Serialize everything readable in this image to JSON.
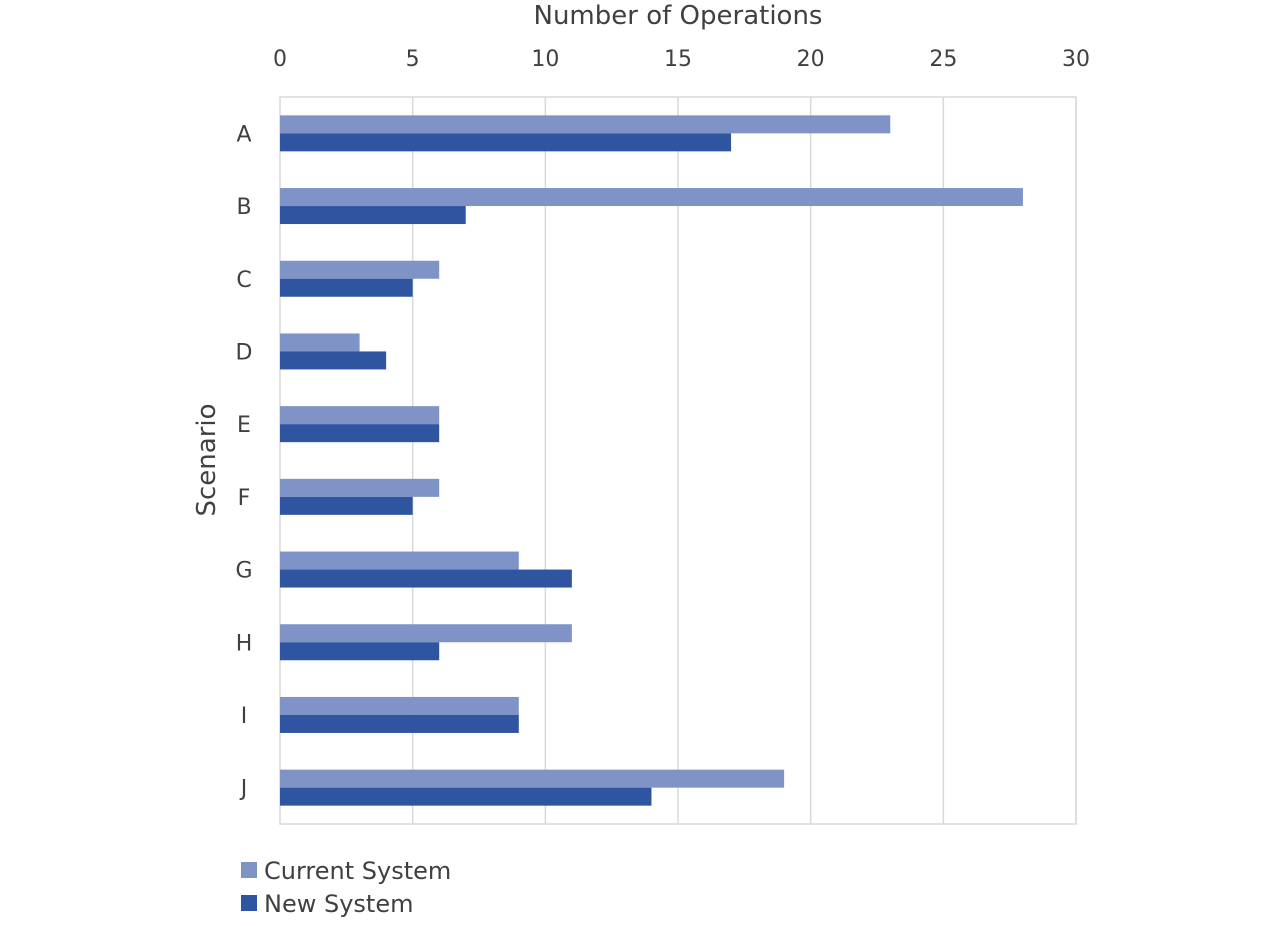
{
  "chart_data": {
    "type": "bar",
    "orientation": "horizontal",
    "title": "",
    "xlabel": "Number of Operations",
    "ylabel": "Scenario",
    "xlim": [
      0,
      30
    ],
    "xticks": [
      0,
      5,
      10,
      15,
      20,
      25,
      30
    ],
    "x_axis_position": "top",
    "grid": true,
    "legend_position": "bottom-left",
    "categories": [
      "A",
      "B",
      "C",
      "D",
      "E",
      "F",
      "G",
      "H",
      "I",
      "J"
    ],
    "series": [
      {
        "name": "Current System",
        "color": "#7f93c6",
        "values": [
          23,
          28,
          6,
          3,
          6,
          6,
          9,
          11,
          9,
          19
        ]
      },
      {
        "name": "New System",
        "color": "#2f55a0",
        "values": [
          17,
          7,
          5,
          4,
          6,
          5,
          11,
          6,
          9,
          14
        ]
      }
    ]
  }
}
